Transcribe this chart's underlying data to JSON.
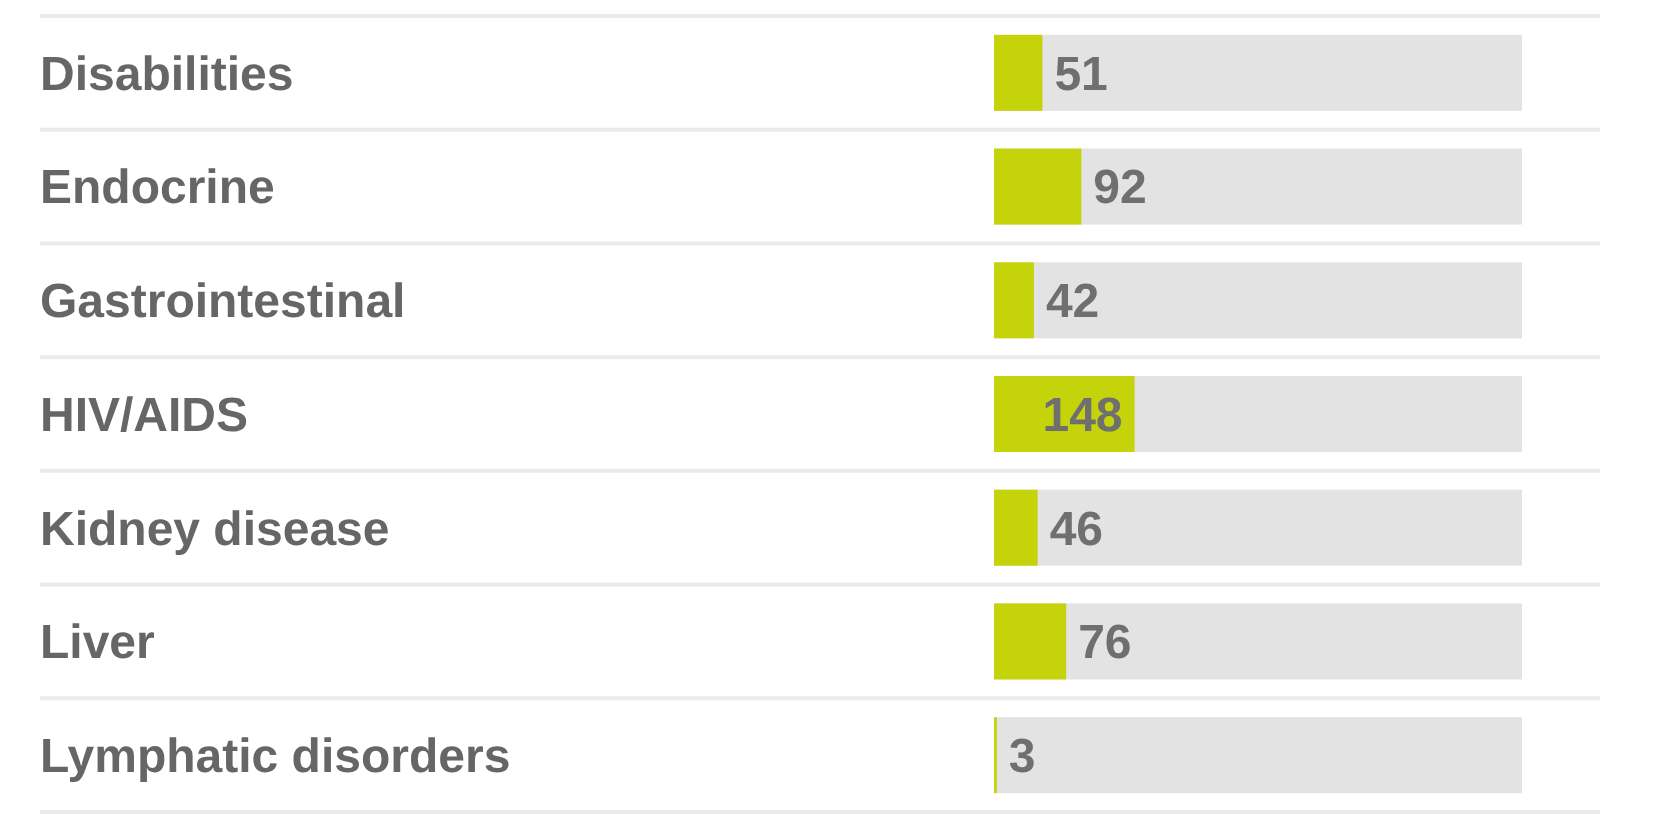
{
  "chart_data": {
    "type": "bar",
    "orientation": "horizontal",
    "categories": [
      "Disabilities",
      "Endocrine",
      "Gastrointestinal",
      "HIV/AIDS",
      "Kidney disease",
      "Liver",
      "Lymphatic disorders"
    ],
    "values": [
      51,
      92,
      42,
      148,
      46,
      76,
      3
    ],
    "color": "#c5d30a",
    "xlim": [
      0,
      556
    ],
    "data_labels": true
  }
}
